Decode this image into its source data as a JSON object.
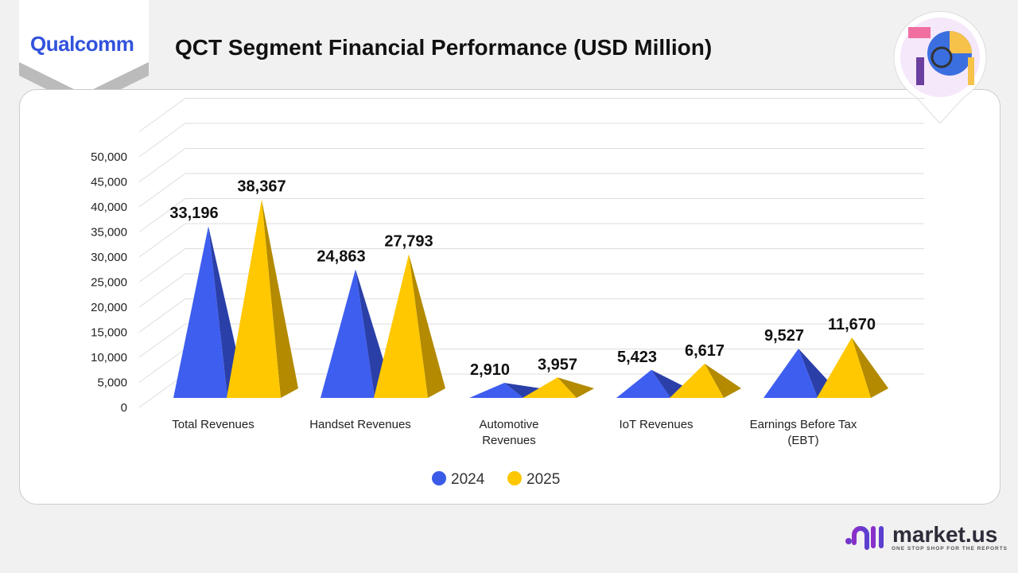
{
  "header": {
    "title": "QCT Segment Financial Performance (USD Million)",
    "logo_text": "Qualcomm"
  },
  "footer": {
    "brand": "market.us",
    "tagline": "ONE STOP SHOP FOR THE REPORTS"
  },
  "chart_data": {
    "type": "bar",
    "style": "3d-pyramid",
    "categories": [
      "Total Revenues",
      "Handset Revenues",
      "Automotive Revenues",
      "IoT Revenues",
      "Earnings Before Tax (EBT)"
    ],
    "category_lines": [
      [
        "Total Revenues"
      ],
      [
        "Handset Revenues"
      ],
      [
        "Automotive",
        "Revenues"
      ],
      [
        "IoT Revenues"
      ],
      [
        "Earnings Before Tax",
        "(EBT)"
      ]
    ],
    "series": [
      {
        "name": "2024",
        "color": "#3a5be8",
        "values": [
          33196,
          24863,
          2910,
          5423,
          9527
        ],
        "labels": [
          "33,196",
          "24,863",
          "2,910",
          "5,423",
          "9,527"
        ]
      },
      {
        "name": "2025",
        "color": "#ffc700",
        "values": [
          38367,
          27793,
          3957,
          6617,
          11670
        ],
        "labels": [
          "38,367",
          "27,793",
          "3,957",
          "6,617",
          "11,670"
        ]
      }
    ],
    "ylim": [
      0,
      50000
    ],
    "yticks": [
      "0",
      "5,000",
      "10,000",
      "15,000",
      "20,000",
      "25,000",
      "30,000",
      "35,000",
      "40,000",
      "45,000",
      "50,000"
    ],
    "grid": true,
    "legend": "bottom"
  }
}
